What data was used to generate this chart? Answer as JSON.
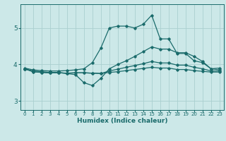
{
  "xlabel": "Humidex (Indice chaleur)",
  "bg_color": "#cce8e8",
  "grid_color": "#aad0d0",
  "line_color": "#1a6b6b",
  "xlim": [
    -0.5,
    23.5
  ],
  "ylim": [
    2.75,
    5.65
  ],
  "xticks": [
    0,
    1,
    2,
    3,
    4,
    5,
    6,
    7,
    8,
    9,
    10,
    11,
    12,
    13,
    14,
    15,
    16,
    17,
    18,
    19,
    20,
    21,
    22,
    23
  ],
  "yticks": [
    3,
    4,
    5
  ],
  "line1_x": [
    0,
    1,
    2,
    3,
    4,
    5,
    6,
    7,
    8,
    9,
    10,
    11,
    12,
    13,
    14,
    15,
    16,
    17,
    18,
    19,
    20,
    21,
    22,
    23
  ],
  "line1_y": [
    3.9,
    3.85,
    3.83,
    3.82,
    3.82,
    3.83,
    3.85,
    3.88,
    4.05,
    4.45,
    5.0,
    5.05,
    5.05,
    5.0,
    5.1,
    5.35,
    4.7,
    4.7,
    4.3,
    4.3,
    4.1,
    4.05,
    3.88,
    3.9
  ],
  "line2_x": [
    0,
    1,
    2,
    3,
    4,
    5,
    6,
    7,
    8,
    9,
    10,
    11,
    12,
    13,
    14,
    15,
    16,
    17,
    18,
    19,
    20,
    21,
    22,
    23
  ],
  "line2_y": [
    3.88,
    3.82,
    3.8,
    3.78,
    3.78,
    3.75,
    3.72,
    3.5,
    3.42,
    3.62,
    3.88,
    4.0,
    4.1,
    4.22,
    4.35,
    4.48,
    4.42,
    4.42,
    4.32,
    4.32,
    4.22,
    4.08,
    3.88,
    3.85
  ],
  "line3_x": [
    0,
    1,
    2,
    3,
    4,
    5,
    6,
    7,
    8,
    9,
    10,
    11,
    12,
    13,
    14,
    15,
    16,
    17,
    18,
    19,
    20,
    21,
    22,
    23
  ],
  "line3_y": [
    3.88,
    3.8,
    3.78,
    3.77,
    3.77,
    3.76,
    3.77,
    3.77,
    3.76,
    3.75,
    3.82,
    3.87,
    3.92,
    3.97,
    4.02,
    4.08,
    4.04,
    4.04,
    3.98,
    3.98,
    3.92,
    3.88,
    3.82,
    3.82
  ],
  "line4_x": [
    0,
    1,
    2,
    3,
    4,
    5,
    6,
    7,
    8,
    9,
    10,
    11,
    12,
    13,
    14,
    15,
    16,
    17,
    18,
    19,
    20,
    21,
    22,
    23
  ],
  "line4_y": [
    3.88,
    3.8,
    3.78,
    3.77,
    3.77,
    3.76,
    3.77,
    3.77,
    3.76,
    3.75,
    3.78,
    3.8,
    3.83,
    3.86,
    3.89,
    3.92,
    3.9,
    3.9,
    3.86,
    3.86,
    3.83,
    3.81,
    3.79,
    3.79
  ]
}
